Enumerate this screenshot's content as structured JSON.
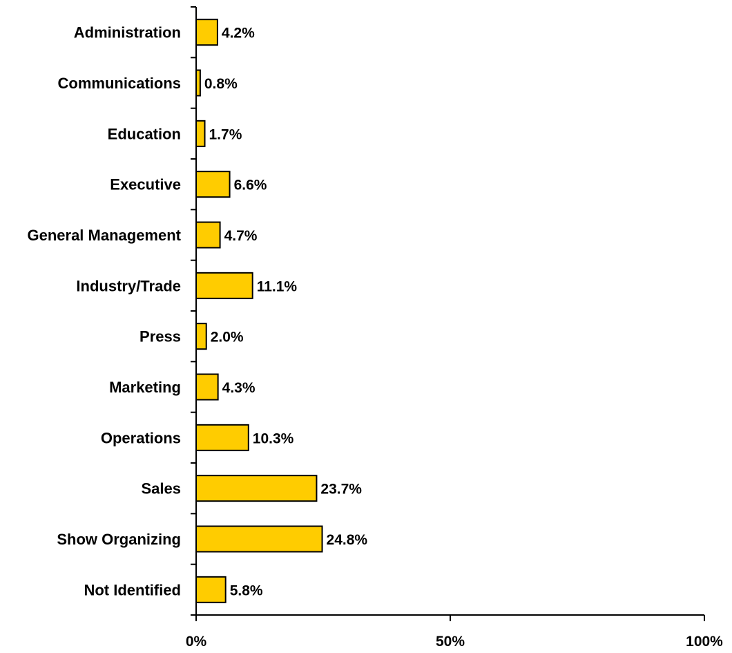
{
  "chart_data": {
    "type": "bar",
    "orientation": "horizontal",
    "title": "",
    "xlabel": "",
    "ylabel": "",
    "categories": [
      "Administration",
      "Communications",
      "Education",
      "Executive",
      "General Management",
      "Industry/Trade",
      "Press",
      "Marketing",
      "Operations",
      "Sales",
      "Show Organizing",
      "Not Identified"
    ],
    "values": [
      4.2,
      0.8,
      1.7,
      6.6,
      4.7,
      11.1,
      2.0,
      4.3,
      10.3,
      23.7,
      24.8,
      5.8
    ],
    "value_labels": [
      "4.2%",
      "0.8%",
      "1.7%",
      "6.6%",
      "4.7%",
      "11.1%",
      "2.0%",
      "4.3%",
      "10.3%",
      "23.7%",
      "24.8%",
      "5.8%"
    ],
    "xlim": [
      0,
      100
    ],
    "x_ticks": [
      0,
      50,
      100
    ],
    "x_tick_labels": [
      "0%",
      "50%",
      "100%"
    ],
    "grid": false,
    "legend": "none",
    "colors": {
      "bar_fill": "#FFCC00",
      "bar_stroke": "#000000",
      "axis": "#000000"
    }
  }
}
